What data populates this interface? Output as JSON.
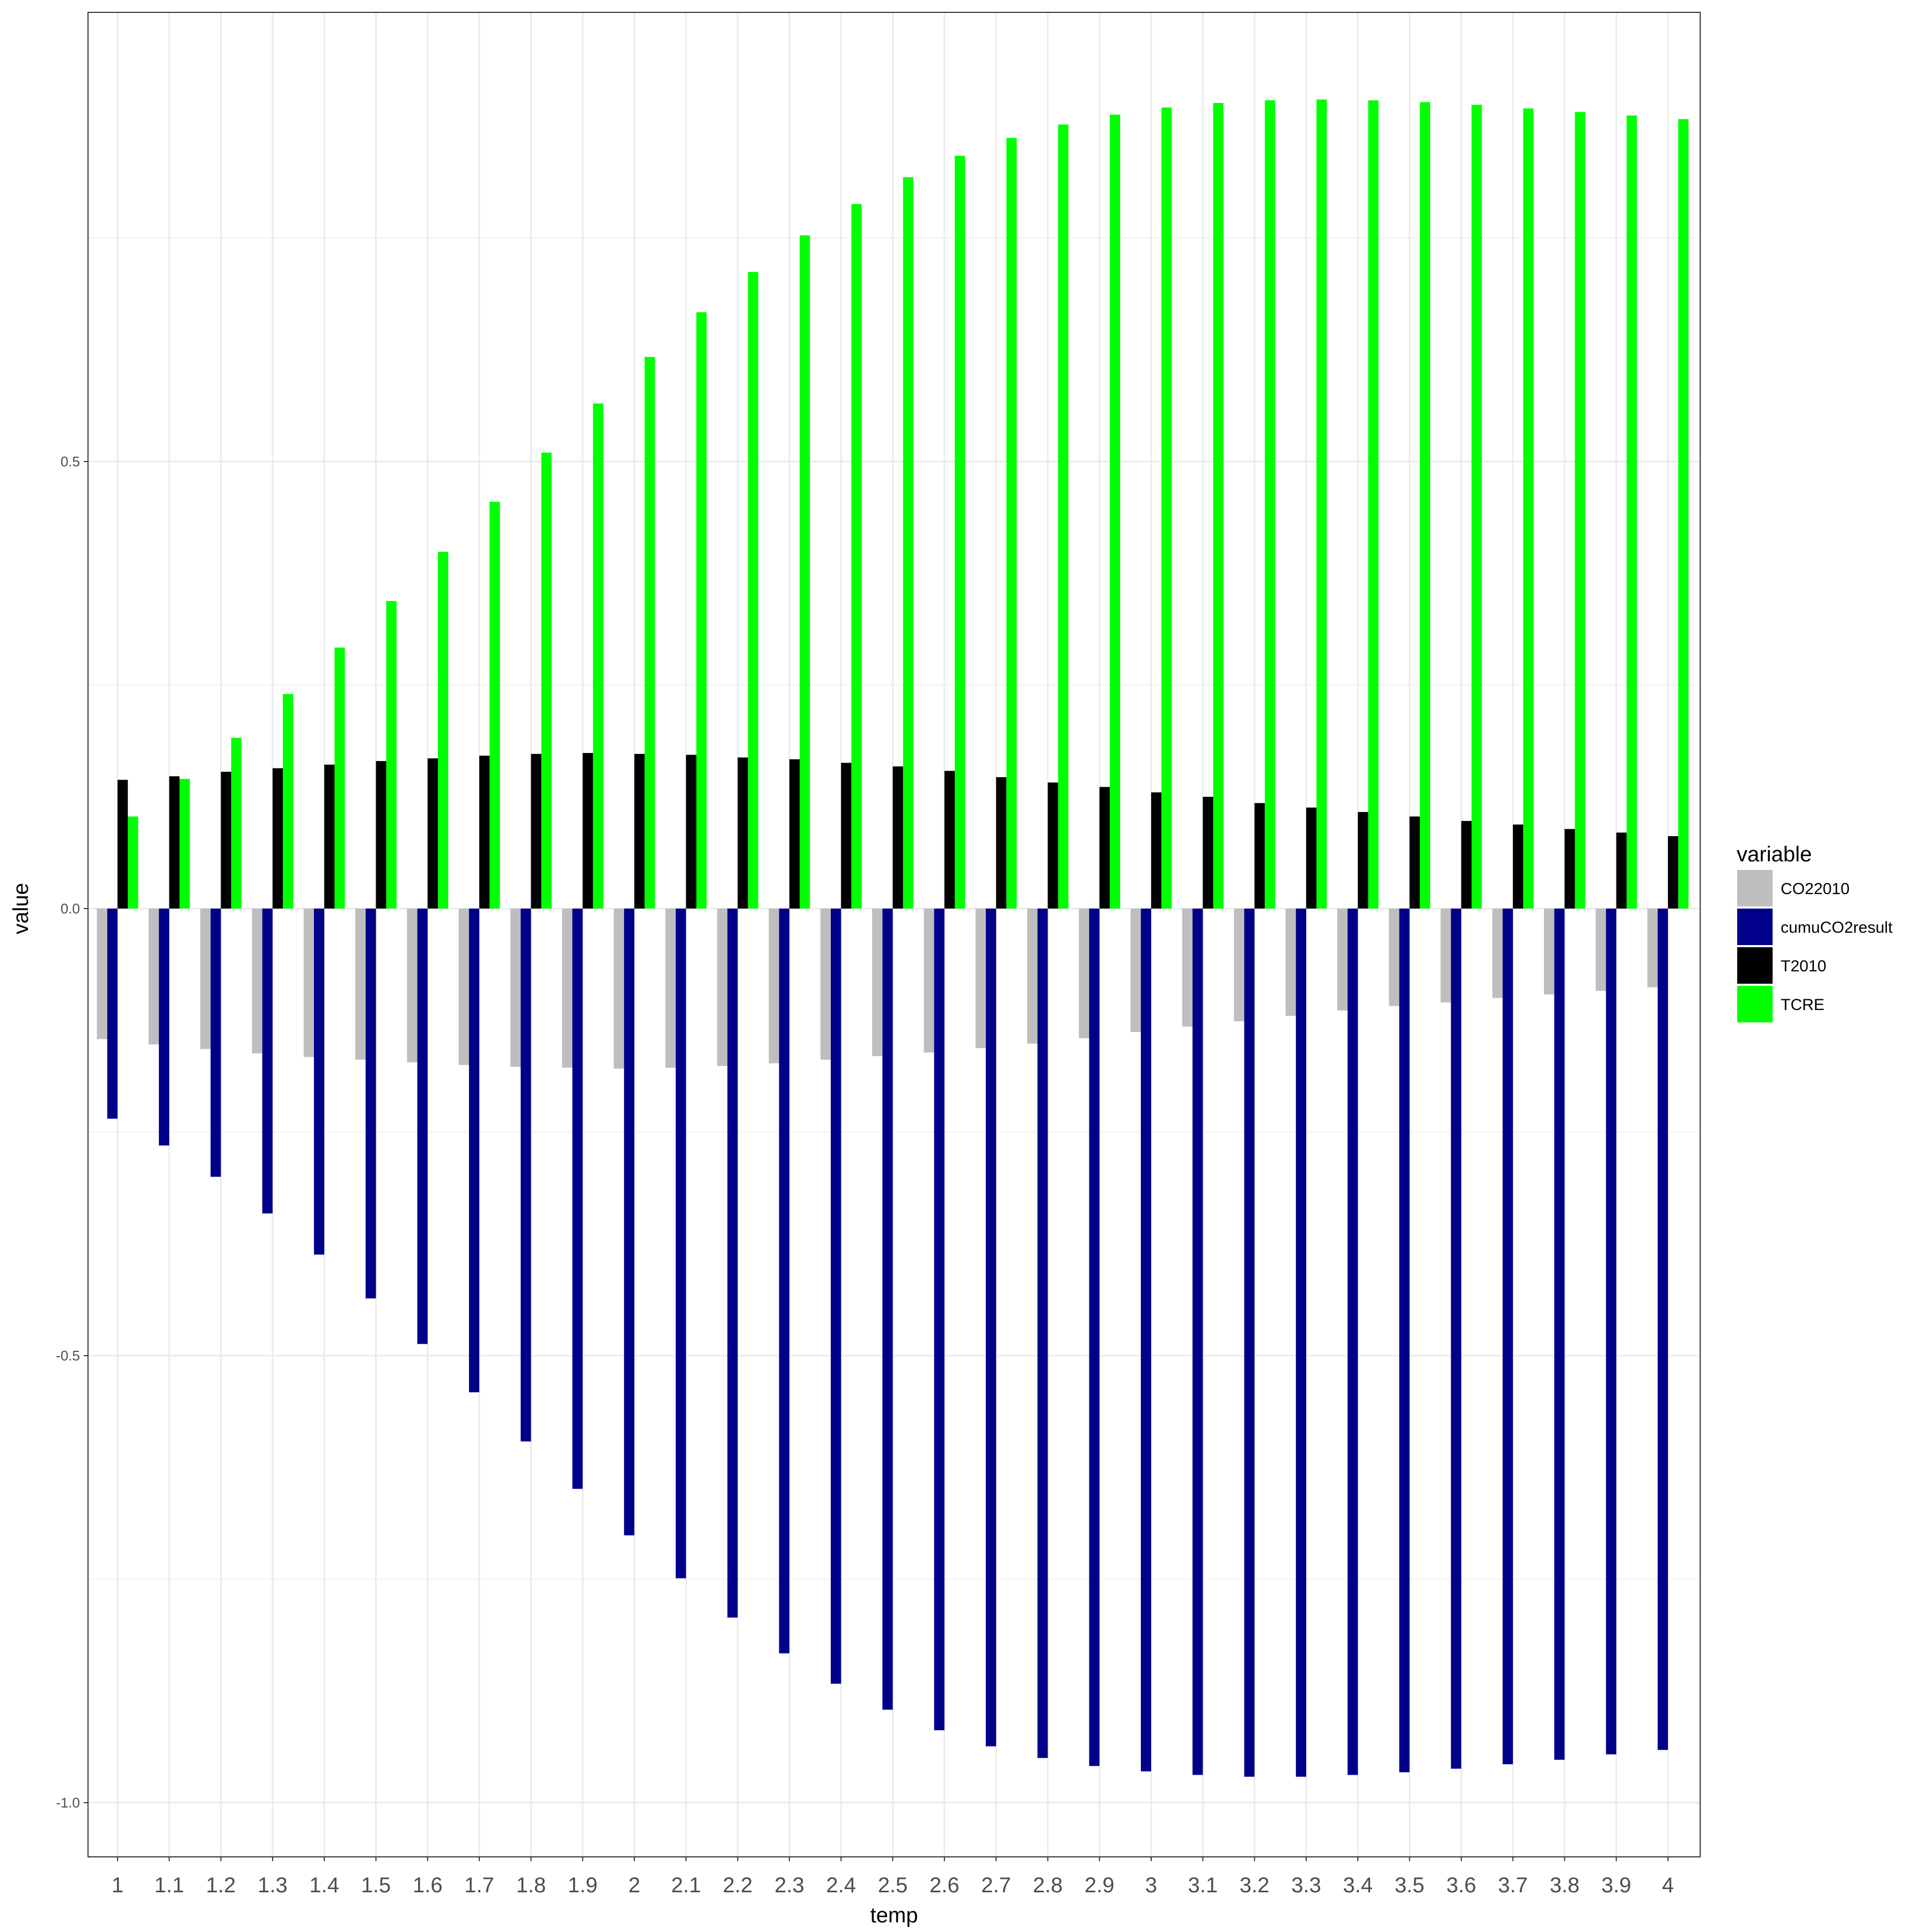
{
  "chart_data": {
    "type": "bar",
    "xlabel": "temp",
    "ylabel": "value",
    "categories": [
      "1",
      "1.1",
      "1.2",
      "1.3",
      "1.4",
      "1.5",
      "1.6",
      "1.7",
      "1.8",
      "1.9",
      "2",
      "2.1",
      "2.2",
      "2.3",
      "2.4",
      "2.5",
      "2.6",
      "2.7",
      "2.8",
      "2.9",
      "3",
      "3.1",
      "3.2",
      "3.3",
      "3.4",
      "3.5",
      "3.6",
      "3.7",
      "3.8",
      "3.9",
      "4"
    ],
    "ylim": [
      -1.06,
      1.0
    ],
    "y_ticks": [
      0.5,
      0.0,
      -0.5,
      -1.0
    ],
    "y_tick_labels": [
      "0.5",
      "0.0",
      "-0.5",
      "-1.0"
    ],
    "grid": true,
    "legend": {
      "title": "variable",
      "position": "right"
    },
    "series": [
      {
        "name": "CO22010",
        "color": "#bebebe",
        "values": [
          -0.146,
          -0.152,
          -0.157,
          -0.162,
          -0.166,
          -0.169,
          -0.172,
          -0.175,
          -0.177,
          -0.178,
          -0.179,
          -0.178,
          -0.176,
          -0.173,
          -0.169,
          -0.165,
          -0.161,
          -0.156,
          -0.151,
          -0.145,
          -0.138,
          -0.132,
          -0.126,
          -0.12,
          -0.114,
          -0.109,
          -0.105,
          -0.1,
          -0.096,
          -0.092,
          -0.088
        ]
      },
      {
        "name": "cumuCO2result",
        "color": "#00008b",
        "values": [
          -0.235,
          -0.265,
          -0.3,
          -0.341,
          -0.387,
          -0.436,
          -0.487,
          -0.541,
          -0.596,
          -0.649,
          -0.701,
          -0.749,
          -0.793,
          -0.833,
          -0.867,
          -0.896,
          -0.919,
          -0.937,
          -0.95,
          -0.959,
          -0.965,
          -0.969,
          -0.971,
          -0.971,
          -0.969,
          -0.966,
          -0.962,
          -0.957,
          -0.952,
          -0.946,
          -0.941
        ]
      },
      {
        "name": "T2010",
        "color": "#000000",
        "values": [
          0.144,
          0.148,
          0.153,
          0.157,
          0.161,
          0.165,
          0.168,
          0.171,
          0.173,
          0.174,
          0.173,
          0.172,
          0.169,
          0.167,
          0.163,
          0.159,
          0.154,
          0.147,
          0.141,
          0.136,
          0.13,
          0.125,
          0.118,
          0.113,
          0.108,
          0.103,
          0.098,
          0.094,
          0.089,
          0.085,
          0.081
        ]
      },
      {
        "name": "TCRE",
        "color": "#00ff00",
        "values": [
          0.103,
          0.145,
          0.191,
          0.24,
          0.292,
          0.344,
          0.399,
          0.455,
          0.51,
          0.565,
          0.617,
          0.667,
          0.712,
          0.753,
          0.788,
          0.818,
          0.842,
          0.862,
          0.877,
          0.888,
          0.896,
          0.901,
          0.904,
          0.905,
          0.904,
          0.902,
          0.899,
          0.895,
          0.891,
          0.887,
          0.883
        ]
      }
    ]
  }
}
